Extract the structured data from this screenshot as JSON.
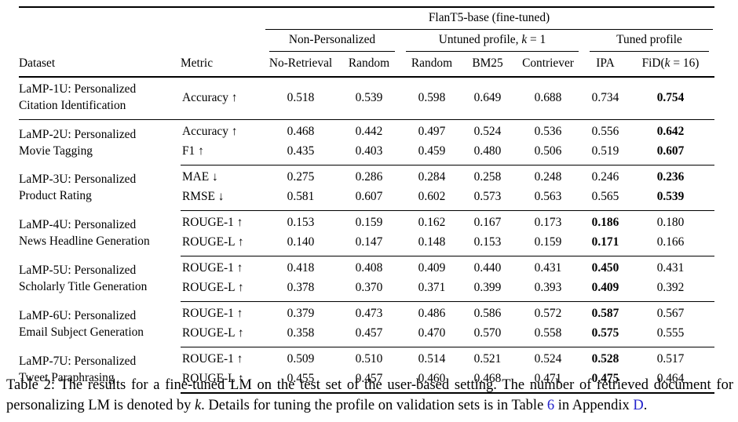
{
  "table": {
    "top_header": "FlanT5-base (fine-tuned)",
    "groups": [
      {
        "label": "Non-Personalized"
      },
      {
        "pre": "Untuned profile, ",
        "k": "k",
        "post": " = 1"
      },
      {
        "label": "Tuned profile"
      }
    ],
    "columns": [
      "Dataset",
      "Metric",
      "No-Retrieval",
      "Random",
      "Random",
      "BM25",
      "Contriever",
      "IPA"
    ],
    "fid_column": {
      "pre": "FiD(",
      "k": "k",
      "post": " = 16)"
    },
    "rows": [
      {
        "dataset": "LaMP-1U: Personalized\nCitation Identification",
        "metrics": [
          {
            "name": "Accuracy ↑",
            "values": [
              "0.518",
              "0.539",
              "0.598",
              "0.649",
              "0.688",
              "0.734",
              "0.754"
            ],
            "bold": 6
          }
        ]
      },
      {
        "dataset": "LaMP-2U: Personalized\nMovie Tagging",
        "metrics": [
          {
            "name": "Accuracy ↑",
            "values": [
              "0.468",
              "0.442",
              "0.497",
              "0.524",
              "0.536",
              "0.556",
              "0.642"
            ],
            "bold": 6
          },
          {
            "name": "F1 ↑",
            "values": [
              "0.435",
              "0.403",
              "0.459",
              "0.480",
              "0.506",
              "0.519",
              "0.607"
            ],
            "bold": 6
          }
        ]
      },
      {
        "dataset": "LaMP-3U: Personalized\nProduct Rating",
        "metrics": [
          {
            "name": "MAE ↓",
            "values": [
              "0.275",
              "0.286",
              "0.284",
              "0.258",
              "0.248",
              "0.246",
              "0.236"
            ],
            "bold": 6
          },
          {
            "name": "RMSE ↓",
            "values": [
              "0.581",
              "0.607",
              "0.602",
              "0.573",
              "0.563",
              "0.565",
              "0.539"
            ],
            "bold": 6
          }
        ]
      },
      {
        "dataset": "LaMP-4U: Personalized\nNews Headline Generation",
        "metrics": [
          {
            "name": "ROUGE-1 ↑",
            "values": [
              "0.153",
              "0.159",
              "0.162",
              "0.167",
              "0.173",
              "0.186",
              "0.180"
            ],
            "bold": 5
          },
          {
            "name": "ROUGE-L ↑",
            "values": [
              "0.140",
              "0.147",
              "0.148",
              "0.153",
              "0.159",
              "0.171",
              "0.166"
            ],
            "bold": 5
          }
        ]
      },
      {
        "dataset": "LaMP-5U: Personalized\nScholarly Title Generation",
        "metrics": [
          {
            "name": "ROUGE-1 ↑",
            "values": [
              "0.418",
              "0.408",
              "0.409",
              "0.440",
              "0.431",
              "0.450",
              "0.431"
            ],
            "bold": 5
          },
          {
            "name": "ROUGE-L ↑",
            "values": [
              "0.378",
              "0.370",
              "0.371",
              "0.399",
              "0.393",
              "0.409",
              "0.392"
            ],
            "bold": 5
          }
        ]
      },
      {
        "dataset": "LaMP-6U: Personalized\nEmail Subject Generation",
        "metrics": [
          {
            "name": "ROUGE-1 ↑",
            "values": [
              "0.379",
              "0.473",
              "0.486",
              "0.586",
              "0.572",
              "0.587",
              "0.567"
            ],
            "bold": 5
          },
          {
            "name": "ROUGE-L ↑",
            "values": [
              "0.358",
              "0.457",
              "0.470",
              "0.570",
              "0.558",
              "0.575",
              "0.555"
            ],
            "bold": 5
          }
        ]
      },
      {
        "dataset": "LaMP-7U: Personalized\nTweet Paraphrasing",
        "metrics": [
          {
            "name": "ROUGE-1 ↑",
            "values": [
              "0.509",
              "0.510",
              "0.514",
              "0.521",
              "0.524",
              "0.528",
              "0.517"
            ],
            "bold": 5
          },
          {
            "name": "ROUGE-L ↑",
            "values": [
              "0.455",
              "0.457",
              "0.460",
              "0.468",
              "0.471",
              "0.475",
              "0.464"
            ],
            "bold": 5
          }
        ]
      }
    ]
  },
  "caption": {
    "prefix": "Table 2: The results for a fine-tuned LM on the test set of the user-based setting. The number of retrieved document for personalizing LM is denoted by ",
    "k": "k",
    "middle": ". Details for tuning the profile on validation sets is in Table ",
    "table_ref": "6",
    "after_ref": " in Appendix ",
    "appendix_ref": "D",
    "end": ".",
    "link_color": "#2222cc"
  },
  "colors": {
    "text": "#000000",
    "rule": "#000000"
  }
}
